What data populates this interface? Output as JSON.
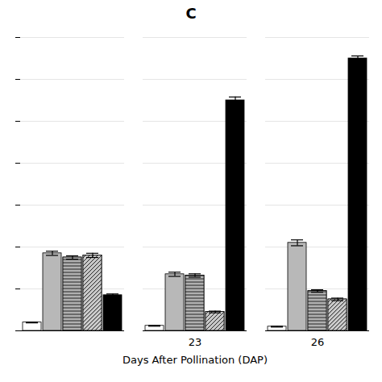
{
  "chart_data": {
    "type": "bar",
    "title": "C",
    "xlabel": "Days After Pollination (DAP)",
    "categories": [
      null,
      "23",
      "26"
    ],
    "series": [
      {
        "color": "white",
        "values": [
          2.0,
          1.2,
          1.0
        ],
        "errors": [
          0.1,
          0.1,
          0.1
        ]
      },
      {
        "color": "#b8b8b8",
        "values": [
          18.5,
          13.5,
          21.0
        ],
        "errors": [
          0.5,
          0.5,
          0.7
        ]
      },
      {
        "color": "#b0b0b0",
        "values": [
          17.5,
          13.2,
          9.5
        ],
        "errors": [
          0.4,
          0.4,
          0.3
        ]
      },
      {
        "color": "#c8c8c8",
        "values": [
          18.0,
          4.5,
          7.5
        ],
        "errors": [
          0.5,
          0.2,
          0.3
        ]
      },
      {
        "color": "black",
        "values": [
          8.5,
          55.0,
          65.0
        ],
        "errors": [
          0.3,
          0.8,
          0.6
        ]
      }
    ],
    "ylim": [
      0,
      70
    ],
    "yticks": [
      0,
      10,
      20,
      30,
      40,
      50,
      60,
      70
    ],
    "grid": true,
    "tick_labels": "x"
  }
}
